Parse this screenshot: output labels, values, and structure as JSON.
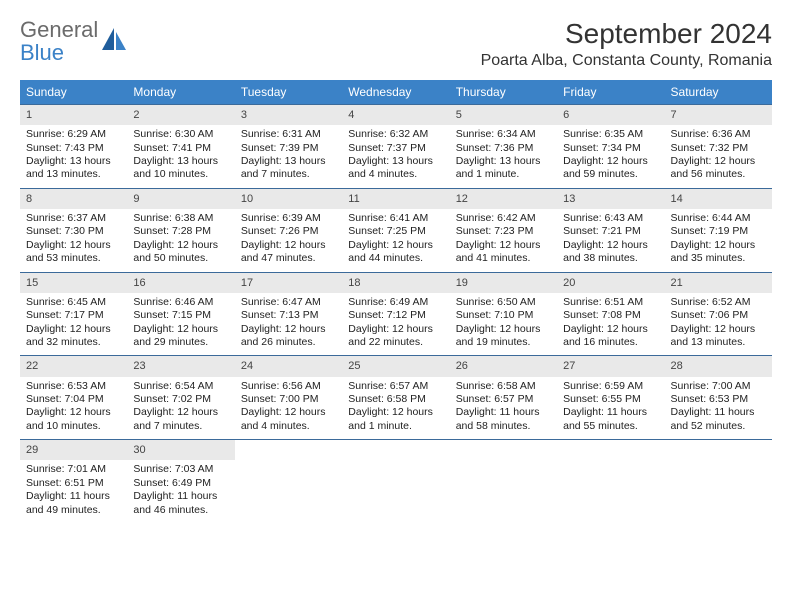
{
  "logo": {
    "general": "General",
    "blue": "Blue"
  },
  "header": {
    "month_title": "September 2024",
    "location": "Poarta Alba, Constanta County, Romania"
  },
  "colors": {
    "header_bg": "#3b82c7",
    "header_text": "#ffffff",
    "daynum_bg": "#e9e9e9",
    "week_border": "#3b6a9a",
    "text": "#222222",
    "logo_grey": "#6b6b6b",
    "logo_blue": "#3b82c7"
  },
  "day_headers": [
    "Sunday",
    "Monday",
    "Tuesday",
    "Wednesday",
    "Thursday",
    "Friday",
    "Saturday"
  ],
  "weeks": [
    [
      {
        "num": "1",
        "sunrise": "Sunrise: 6:29 AM",
        "sunset": "Sunset: 7:43 PM",
        "daylight": "Daylight: 13 hours and 13 minutes."
      },
      {
        "num": "2",
        "sunrise": "Sunrise: 6:30 AM",
        "sunset": "Sunset: 7:41 PM",
        "daylight": "Daylight: 13 hours and 10 minutes."
      },
      {
        "num": "3",
        "sunrise": "Sunrise: 6:31 AM",
        "sunset": "Sunset: 7:39 PM",
        "daylight": "Daylight: 13 hours and 7 minutes."
      },
      {
        "num": "4",
        "sunrise": "Sunrise: 6:32 AM",
        "sunset": "Sunset: 7:37 PM",
        "daylight": "Daylight: 13 hours and 4 minutes."
      },
      {
        "num": "5",
        "sunrise": "Sunrise: 6:34 AM",
        "sunset": "Sunset: 7:36 PM",
        "daylight": "Daylight: 13 hours and 1 minute."
      },
      {
        "num": "6",
        "sunrise": "Sunrise: 6:35 AM",
        "sunset": "Sunset: 7:34 PM",
        "daylight": "Daylight: 12 hours and 59 minutes."
      },
      {
        "num": "7",
        "sunrise": "Sunrise: 6:36 AM",
        "sunset": "Sunset: 7:32 PM",
        "daylight": "Daylight: 12 hours and 56 minutes."
      }
    ],
    [
      {
        "num": "8",
        "sunrise": "Sunrise: 6:37 AM",
        "sunset": "Sunset: 7:30 PM",
        "daylight": "Daylight: 12 hours and 53 minutes."
      },
      {
        "num": "9",
        "sunrise": "Sunrise: 6:38 AM",
        "sunset": "Sunset: 7:28 PM",
        "daylight": "Daylight: 12 hours and 50 minutes."
      },
      {
        "num": "10",
        "sunrise": "Sunrise: 6:39 AM",
        "sunset": "Sunset: 7:26 PM",
        "daylight": "Daylight: 12 hours and 47 minutes."
      },
      {
        "num": "11",
        "sunrise": "Sunrise: 6:41 AM",
        "sunset": "Sunset: 7:25 PM",
        "daylight": "Daylight: 12 hours and 44 minutes."
      },
      {
        "num": "12",
        "sunrise": "Sunrise: 6:42 AM",
        "sunset": "Sunset: 7:23 PM",
        "daylight": "Daylight: 12 hours and 41 minutes."
      },
      {
        "num": "13",
        "sunrise": "Sunrise: 6:43 AM",
        "sunset": "Sunset: 7:21 PM",
        "daylight": "Daylight: 12 hours and 38 minutes."
      },
      {
        "num": "14",
        "sunrise": "Sunrise: 6:44 AM",
        "sunset": "Sunset: 7:19 PM",
        "daylight": "Daylight: 12 hours and 35 minutes."
      }
    ],
    [
      {
        "num": "15",
        "sunrise": "Sunrise: 6:45 AM",
        "sunset": "Sunset: 7:17 PM",
        "daylight": "Daylight: 12 hours and 32 minutes."
      },
      {
        "num": "16",
        "sunrise": "Sunrise: 6:46 AM",
        "sunset": "Sunset: 7:15 PM",
        "daylight": "Daylight: 12 hours and 29 minutes."
      },
      {
        "num": "17",
        "sunrise": "Sunrise: 6:47 AM",
        "sunset": "Sunset: 7:13 PM",
        "daylight": "Daylight: 12 hours and 26 minutes."
      },
      {
        "num": "18",
        "sunrise": "Sunrise: 6:49 AM",
        "sunset": "Sunset: 7:12 PM",
        "daylight": "Daylight: 12 hours and 22 minutes."
      },
      {
        "num": "19",
        "sunrise": "Sunrise: 6:50 AM",
        "sunset": "Sunset: 7:10 PM",
        "daylight": "Daylight: 12 hours and 19 minutes."
      },
      {
        "num": "20",
        "sunrise": "Sunrise: 6:51 AM",
        "sunset": "Sunset: 7:08 PM",
        "daylight": "Daylight: 12 hours and 16 minutes."
      },
      {
        "num": "21",
        "sunrise": "Sunrise: 6:52 AM",
        "sunset": "Sunset: 7:06 PM",
        "daylight": "Daylight: 12 hours and 13 minutes."
      }
    ],
    [
      {
        "num": "22",
        "sunrise": "Sunrise: 6:53 AM",
        "sunset": "Sunset: 7:04 PM",
        "daylight": "Daylight: 12 hours and 10 minutes."
      },
      {
        "num": "23",
        "sunrise": "Sunrise: 6:54 AM",
        "sunset": "Sunset: 7:02 PM",
        "daylight": "Daylight: 12 hours and 7 minutes."
      },
      {
        "num": "24",
        "sunrise": "Sunrise: 6:56 AM",
        "sunset": "Sunset: 7:00 PM",
        "daylight": "Daylight: 12 hours and 4 minutes."
      },
      {
        "num": "25",
        "sunrise": "Sunrise: 6:57 AM",
        "sunset": "Sunset: 6:58 PM",
        "daylight": "Daylight: 12 hours and 1 minute."
      },
      {
        "num": "26",
        "sunrise": "Sunrise: 6:58 AM",
        "sunset": "Sunset: 6:57 PM",
        "daylight": "Daylight: 11 hours and 58 minutes."
      },
      {
        "num": "27",
        "sunrise": "Sunrise: 6:59 AM",
        "sunset": "Sunset: 6:55 PM",
        "daylight": "Daylight: 11 hours and 55 minutes."
      },
      {
        "num": "28",
        "sunrise": "Sunrise: 7:00 AM",
        "sunset": "Sunset: 6:53 PM",
        "daylight": "Daylight: 11 hours and 52 minutes."
      }
    ],
    [
      {
        "num": "29",
        "sunrise": "Sunrise: 7:01 AM",
        "sunset": "Sunset: 6:51 PM",
        "daylight": "Daylight: 11 hours and 49 minutes."
      },
      {
        "num": "30",
        "sunrise": "Sunrise: 7:03 AM",
        "sunset": "Sunset: 6:49 PM",
        "daylight": "Daylight: 11 hours and 46 minutes."
      },
      null,
      null,
      null,
      null,
      null
    ]
  ]
}
